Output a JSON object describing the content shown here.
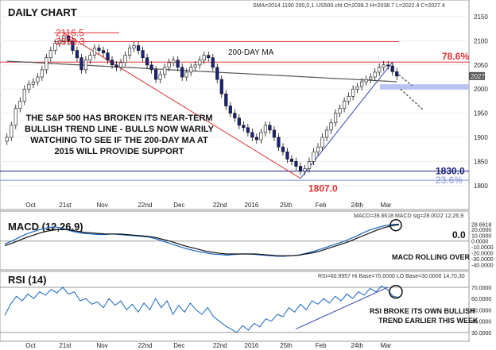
{
  "chart_data": [
    {
      "type": "candlestick",
      "title": "DAILY CHART",
      "header": "SMA=2014.1190 200,0,1",
      "quote": ".US500.cfd O=2038.2 H=2038.7 L=2022.4 C=2027.4",
      "ylim": [
        1780,
        2155
      ],
      "yticks": [
        "2150",
        "2100",
        "2050",
        "2000",
        "1950",
        "1900",
        "1850",
        "1800"
      ],
      "xticks": [
        "Oct",
        "21st",
        "Nov",
        "22nd",
        "Dec",
        "22nd",
        "2016",
        "25th",
        "Feb",
        "24th",
        "Mar"
      ],
      "moving_average_label": "200-DAY MA",
      "current_price_tag": "2027",
      "levels": [
        {
          "label": "2116.5",
          "value": 2116.5,
          "color": "#e03030"
        },
        {
          "label": "2098.3",
          "value": 2098.3,
          "color": "#e03030"
        },
        {
          "label": "78.6%",
          "value": 2056,
          "color": "#e03030"
        },
        {
          "label": "1830.0",
          "value": 1830,
          "color": "#1a237e"
        },
        {
          "label": "23.6%",
          "value": 1811,
          "color": "#7e8fd8"
        },
        {
          "label": "1807.0",
          "value": 1807,
          "color": "#e03030"
        }
      ],
      "annotation": [
        "THE S&P 500 HAS BROKEN ITS NEAR-TERM",
        "BULLISH TREND LINE - BULLS NOW WARILY",
        "WATCHING TO SEE IF THE 200-DAY MA AT",
        "2015 WILL PROVIDE SUPPORT"
      ],
      "closes": [
        1900,
        1925,
        1960,
        1975,
        2000,
        2010,
        2015,
        2025,
        2040,
        2065,
        2080,
        2095,
        2100,
        2110,
        2100,
        2080,
        2065,
        2040,
        2060,
        2070,
        2085,
        2080,
        2075,
        2060,
        2050,
        2045,
        2055,
        2070,
        2085,
        2090,
        2080,
        2065,
        2050,
        2040,
        2020,
        2030,
        2045,
        2055,
        2060,
        2045,
        2025,
        2035,
        2045,
        2050,
        2060,
        2070,
        2065,
        2045,
        2020,
        1990,
        1965,
        1950,
        1940,
        1925,
        1920,
        1910,
        1900,
        1895,
        1910,
        1925,
        1915,
        1900,
        1880,
        1870,
        1855,
        1850,
        1840,
        1830,
        1835,
        1850,
        1870,
        1880,
        1900,
        1915,
        1930,
        1950,
        1960,
        1975,
        1985,
        2000,
        2005,
        2015,
        2020,
        2025,
        2035,
        2045,
        2050,
        2048,
        2036,
        2027
      ]
    },
    {
      "type": "line",
      "title": "MACD (12,26,9)",
      "header": "MACD=28.6618 MACD sig=28.0022  12,26,9",
      "zero_label": "0.0",
      "yticks": [
        "28.6618",
        "20.0000",
        "10.0000",
        "0.0000",
        "-10.0000",
        "-20.0000",
        "-30.0000",
        "-40.0000"
      ],
      "ylim": [
        -45,
        32
      ],
      "note": "MACD ROLLING OVER",
      "series": [
        {
          "name": "MACD",
          "values": [
            -5,
            0,
            6,
            12,
            16,
            20,
            23,
            24,
            22,
            18,
            15,
            13,
            12,
            11,
            11,
            12,
            11,
            10,
            9,
            8,
            7,
            4,
            0,
            -4,
            -8,
            -12,
            -15,
            -18,
            -20,
            -22,
            -23,
            -24,
            -23,
            -22,
            -22,
            -23,
            -24,
            -25,
            -26,
            -26,
            -25,
            -24,
            -21,
            -18,
            -14,
            -10,
            -6,
            -2,
            3,
            8,
            14,
            19,
            23,
            26,
            28,
            28.7
          ]
        },
        {
          "name": "MACD sig",
          "values": [
            -8,
            -4,
            1,
            6,
            10,
            14,
            17,
            19,
            20,
            19,
            17,
            15,
            14,
            13,
            12,
            12,
            12,
            11,
            10,
            9,
            8,
            6,
            3,
            0,
            -4,
            -8,
            -11,
            -14,
            -17,
            -19,
            -21,
            -22,
            -22,
            -22,
            -22,
            -22,
            -23,
            -24,
            -25,
            -25,
            -25,
            -24,
            -22,
            -20,
            -17,
            -13,
            -9,
            -5,
            -1,
            4,
            9,
            14,
            19,
            23,
            26,
            28.0
          ]
        }
      ]
    },
    {
      "type": "line",
      "title": "RSI (14)",
      "header": "RSI=60.9957 Hi Base=70.0000 LO Base=30.0000  14,70,30",
      "yticks": [
        "70.0000",
        "60.0000",
        "50.0000",
        "40.0000",
        "30.0000"
      ],
      "ylim": [
        25,
        77
      ],
      "note": [
        "RSI BROKE ITS OWN BULLISH",
        "TREND EARLIER THIS WEEK"
      ],
      "series": [
        {
          "name": "RSI",
          "values": [
            45,
            55,
            62,
            58,
            64,
            60,
            66,
            63,
            68,
            65,
            70,
            64,
            66,
            58,
            60,
            55,
            57,
            52,
            60,
            54,
            58,
            50,
            55,
            48,
            56,
            50,
            60,
            52,
            58,
            46,
            54,
            48,
            56,
            50,
            46,
            52,
            44,
            40,
            36,
            33,
            30,
            36,
            32,
            38,
            35,
            42,
            40,
            46,
            44,
            52,
            48,
            55,
            50,
            58,
            55,
            60,
            56,
            62,
            58,
            64,
            60,
            66,
            63,
            69,
            66,
            71,
            68,
            62,
            61
          ]
        }
      ]
    }
  ]
}
